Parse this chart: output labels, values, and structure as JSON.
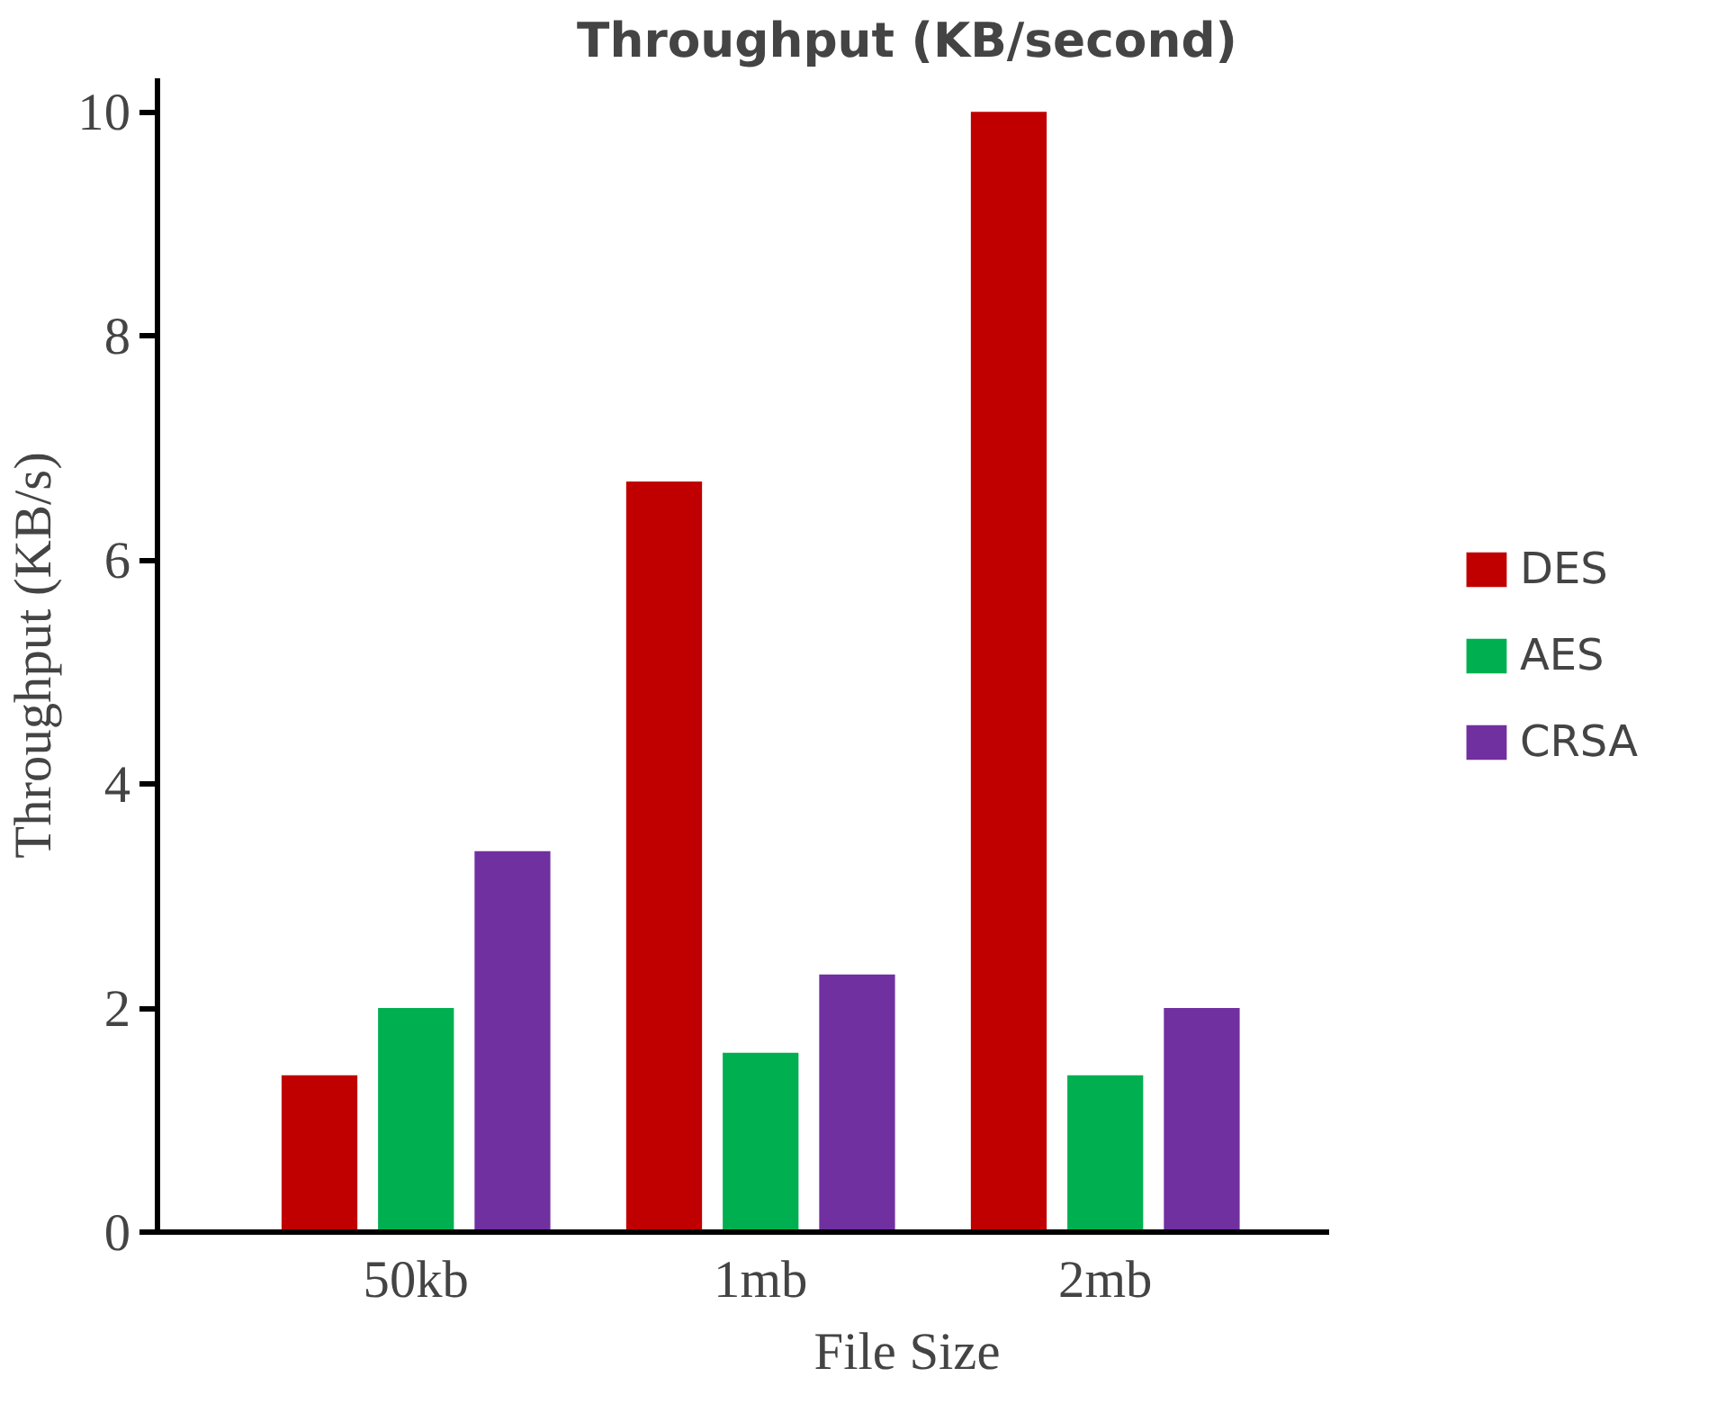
{
  "chart_data": {
    "type": "bar",
    "title": "Throughput (KB/second)",
    "xlabel": "File Size",
    "ylabel": "Throughput (KB/s)",
    "categories": [
      "50kb",
      "1mb",
      "2mb"
    ],
    "series": [
      {
        "name": "DES",
        "color": "#c00000",
        "values": [
          1.4,
          6.7,
          10
        ]
      },
      {
        "name": "AES",
        "color": "#00b050",
        "values": [
          2,
          1.6,
          1.4
        ]
      },
      {
        "name": "CRSA",
        "color": "#7030a0",
        "values": [
          3.4,
          2.3,
          2
        ]
      }
    ],
    "ylim": [
      0,
      10.3
    ],
    "yticks": [
      0,
      2,
      4,
      6,
      8,
      10
    ],
    "grid": false,
    "legend": "right"
  }
}
